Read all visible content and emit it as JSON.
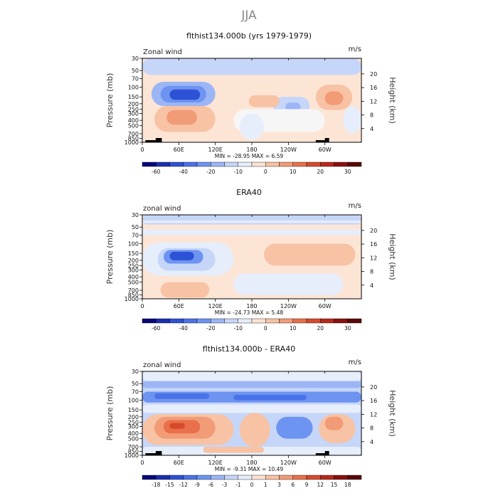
{
  "title": "JJA",
  "colors": {
    "fill_neutral": "#f6f6f6",
    "fill_frame": "#000000",
    "topography": "#000000"
  },
  "axis_common": {
    "pressure_label": "Pressure (mb)",
    "height_label": "Height (km)",
    "units": "m/s",
    "panel_label": "Zonal wind",
    "pressure_ticks": [
      "30",
      "50",
      "70",
      "100",
      "150",
      "200",
      "250",
      "300",
      "400",
      "500",
      "700",
      "850",
      "1000"
    ],
    "pressure_values": [
      30,
      50,
      70,
      100,
      150,
      200,
      250,
      300,
      400,
      500,
      700,
      850,
      1000
    ],
    "height_ticks": [
      "20",
      "16",
      "12",
      "8",
      "4"
    ],
    "height_values": [
      20,
      16,
      12,
      8,
      4
    ],
    "lon_ticks": [
      "0",
      "60E",
      "120E",
      "180",
      "120W",
      "60W"
    ],
    "lon_values": [
      0,
      60,
      120,
      180,
      240,
      300
    ],
    "lon_range": [
      0,
      360
    ],
    "pressure_range": [
      1000,
      30
    ]
  },
  "chart_data": [
    {
      "type": "heatmap",
      "title": "flthist134.000b (yrs 1979-1979)",
      "label_left": "Zonal wind",
      "label_right": "m/s",
      "xlabel": "",
      "ylabel": "Pressure (mb)",
      "ylabel_right": "Height (km)",
      "stats": "MIN = -28.95   MAX =    6.59",
      "colorbar": {
        "labels": [
          "-60",
          "-40",
          "-20",
          "-10",
          "0",
          "10",
          "20",
          "30"
        ],
        "colors": [
          "#08087a",
          "#1a2fb0",
          "#2d52d6",
          "#4a72e8",
          "#6e94f2",
          "#9cb6f5",
          "#c6d6f8",
          "#e6eefb",
          "#fbe2d2",
          "#f8c2a4",
          "#f29b77",
          "#e8704b",
          "#d64a2b",
          "#b8281a",
          "#8a1010",
          "#5a0707"
        ]
      },
      "background_level": "#fde5d6",
      "features": [
        {
          "lon": 0,
          "lon2": 360,
          "p": 30,
          "p2": 60,
          "level": "#c6d6f8"
        },
        {
          "lon": 15,
          "lon2": 120,
          "p": 80,
          "p2": 220,
          "level": "#9cb6f5"
        },
        {
          "lon": 30,
          "lon2": 105,
          "p": 95,
          "p2": 190,
          "level": "#6e94f2"
        },
        {
          "lon": 45,
          "lon2": 95,
          "p": 110,
          "p2": 170,
          "level": "#2d52d6"
        },
        {
          "lon": 215,
          "lon2": 275,
          "p": 150,
          "p2": 330,
          "level": "#c6d6f8"
        },
        {
          "lon": 235,
          "lon2": 260,
          "p": 190,
          "p2": 280,
          "level": "#9cb6f5"
        },
        {
          "lon": 285,
          "lon2": 345,
          "p": 90,
          "p2": 260,
          "level": "#f8c2a4"
        },
        {
          "lon": 300,
          "lon2": 330,
          "p": 120,
          "p2": 210,
          "level": "#f29b77"
        },
        {
          "lon": 175,
          "lon2": 225,
          "p": 140,
          "p2": 230,
          "level": "#f8c2a4"
        },
        {
          "lon": 20,
          "lon2": 120,
          "p": 220,
          "p2": 650,
          "level": "#f8c2a4"
        },
        {
          "lon": 40,
          "lon2": 90,
          "p": 260,
          "p2": 480,
          "level": "#f29b77"
        },
        {
          "lon": 150,
          "lon2": 300,
          "p": 250,
          "p2": 650,
          "level": "#f6f6f6"
        },
        {
          "lon": 160,
          "lon2": 200,
          "p": 300,
          "p2": 900,
          "level": "#e6eefb"
        },
        {
          "lon": 330,
          "lon2": 360,
          "p": 220,
          "p2": 700,
          "level": "#e6eefb"
        }
      ],
      "topography": [
        {
          "lon": 5,
          "lon2": 32,
          "height": 1
        },
        {
          "lon": 22,
          "lon2": 32,
          "height": 2
        },
        {
          "lon": 285,
          "lon2": 300,
          "height": 1
        },
        {
          "lon": 300,
          "lon2": 307,
          "height": 2
        }
      ]
    },
    {
      "type": "heatmap",
      "title": "ERA40",
      "label_left": "zonal wind",
      "label_right": "m/s",
      "xlabel": "",
      "ylabel": "Pressure (mb)",
      "ylabel_right": "Height (km)",
      "stats": "MIN = -24.73   MAX =    5.48",
      "colorbar": {
        "labels": [
          "-60",
          "-40",
          "-20",
          "-10",
          "0",
          "10",
          "20",
          "30"
        ],
        "colors": [
          "#08087a",
          "#1a2fb0",
          "#2d52d6",
          "#4a72e8",
          "#6e94f2",
          "#9cb6f5",
          "#c6d6f8",
          "#e6eefb",
          "#fbe2d2",
          "#f8c2a4",
          "#f29b77",
          "#e8704b",
          "#d64a2b",
          "#b8281a",
          "#8a1010",
          "#5a0707"
        ]
      },
      "background_level": "#fde5d6",
      "features": [
        {
          "lon": 0,
          "lon2": 360,
          "p": 30,
          "p2": 45,
          "level": "#c6d6f8"
        },
        {
          "lon": 0,
          "lon2": 360,
          "p": 38,
          "p2": 42,
          "level": "#e6eefb"
        },
        {
          "lon": 0,
          "lon2": 360,
          "p": 55,
          "p2": 70,
          "level": "#e6eefb"
        },
        {
          "lon": 0,
          "lon2": 150,
          "p": 95,
          "p2": 380,
          "level": "#e6eefb"
        },
        {
          "lon": 25,
          "lon2": 120,
          "p": 120,
          "p2": 310,
          "level": "#c6d6f8"
        },
        {
          "lon": 35,
          "lon2": 100,
          "p": 130,
          "p2": 230,
          "level": "#6e94f2"
        },
        {
          "lon": 45,
          "lon2": 85,
          "p": 140,
          "p2": 200,
          "level": "#2d52d6"
        },
        {
          "lon": 200,
          "lon2": 350,
          "p": 100,
          "p2": 250,
          "level": "#f8c2a4"
        },
        {
          "lon": 150,
          "lon2": 330,
          "p": 350,
          "p2": 850,
          "level": "#e6eefb"
        },
        {
          "lon": 30,
          "lon2": 110,
          "p": 500,
          "p2": 950,
          "level": "#f8c2a4"
        }
      ],
      "topography": []
    },
    {
      "type": "heatmap",
      "title": "flthist134.000b - ERA40",
      "label_left": "zonal wind",
      "label_right": "m/s",
      "xlabel": "",
      "ylabel": "Pressure (mb)",
      "ylabel_right": "Height (km)",
      "stats": "MIN = -9.31   MAX =   10.49",
      "colorbar": {
        "labels": [
          "-18",
          "-15",
          "-12",
          "-9",
          "-6",
          "-3",
          "-1",
          "0",
          "1",
          "3",
          "6",
          "9",
          "12",
          "15",
          "18"
        ],
        "colors": [
          "#08087a",
          "#1a2fb0",
          "#2d52d6",
          "#4a72e8",
          "#6e94f2",
          "#9cb6f5",
          "#c6d6f8",
          "#e6eefb",
          "#fbe2d2",
          "#f8c2a4",
          "#f29b77",
          "#e8704b",
          "#d64a2b",
          "#b8281a",
          "#8a1010",
          "#5a0707"
        ]
      },
      "background_level": "#c6d6f8",
      "features": [
        {
          "lon": 0,
          "lon2": 360,
          "p": 30,
          "p2": 45,
          "level": "#e6eefb"
        },
        {
          "lon": 0,
          "lon2": 360,
          "p": 45,
          "p2": 60,
          "level": "#9cb6f5"
        },
        {
          "lon": 0,
          "lon2": 360,
          "p": 70,
          "p2": 110,
          "level": "#6e94f2"
        },
        {
          "lon": 20,
          "lon2": 110,
          "p": 75,
          "p2": 95,
          "level": "#4a72e8"
        },
        {
          "lon": 150,
          "lon2": 270,
          "p": 80,
          "p2": 100,
          "level": "#4a72e8"
        },
        {
          "lon": 0,
          "lon2": 360,
          "p": 120,
          "p2": 170,
          "level": "#e6eefb"
        },
        {
          "lon": 0,
          "lon2": 150,
          "p": 180,
          "p2": 650,
          "level": "#f8c2a4"
        },
        {
          "lon": 20,
          "lon2": 120,
          "p": 200,
          "p2": 500,
          "level": "#f29b77"
        },
        {
          "lon": 35,
          "lon2": 95,
          "p": 230,
          "p2": 400,
          "level": "#e8704b"
        },
        {
          "lon": 45,
          "lon2": 70,
          "p": 260,
          "p2": 330,
          "level": "#d64a2b"
        },
        {
          "lon": 160,
          "lon2": 210,
          "p": 170,
          "p2": 700,
          "level": "#f8c2a4"
        },
        {
          "lon": 220,
          "lon2": 280,
          "p": 200,
          "p2": 500,
          "level": "#6e94f2"
        },
        {
          "lon": 290,
          "lon2": 350,
          "p": 180,
          "p2": 600,
          "level": "#f8c2a4"
        },
        {
          "lon": 300,
          "lon2": 330,
          "p": 200,
          "p2": 350,
          "level": "#f29b77"
        },
        {
          "lon": 0,
          "lon2": 360,
          "p": 700,
          "p2": 1000,
          "level": "#e6eefb"
        },
        {
          "lon": 100,
          "lon2": 200,
          "p": 700,
          "p2": 900,
          "level": "#f8c2a4"
        }
      ],
      "topography": [
        {
          "lon": 5,
          "lon2": 32,
          "height": 1
        },
        {
          "lon": 22,
          "lon2": 32,
          "height": 2
        },
        {
          "lon": 285,
          "lon2": 300,
          "height": 1
        },
        {
          "lon": 300,
          "lon2": 307,
          "height": 2
        }
      ]
    }
  ]
}
